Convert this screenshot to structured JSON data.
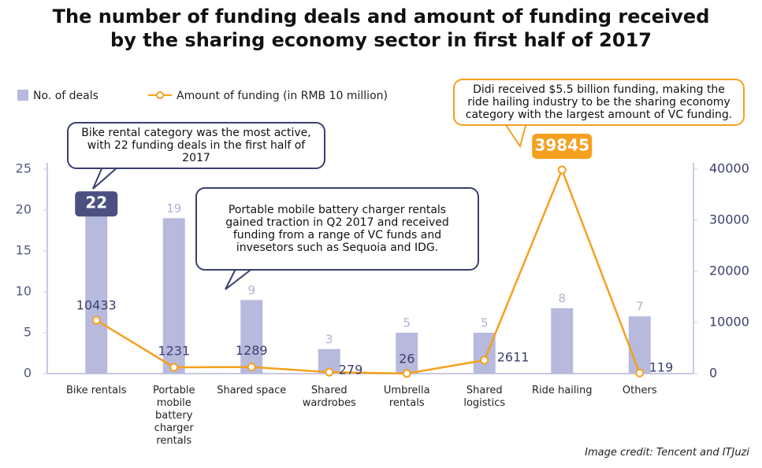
{
  "chart_data": {
    "type": "bar",
    "title": "The number of funding deals and amount of funding received by the sharing economy sector in first half of 2017",
    "categories": [
      "Bike rentals",
      "Portable mobile battery charger rentals",
      "Shared space",
      "Shared wardrobes",
      "Umbrella rentals",
      "Shared logistics",
      "Ride hailing",
      "Others"
    ],
    "series": [
      {
        "name": "No. of deals",
        "type": "bar",
        "color": "#b7badd",
        "values": [
          22,
          19,
          9,
          3,
          5,
          5,
          8,
          7
        ],
        "highlight": [
          0
        ]
      },
      {
        "name": "Amount of funding (in RMB 10 million)",
        "type": "line",
        "axis": "y2",
        "color": "#f5a01e",
        "values": [
          10433,
          1231,
          1289,
          279,
          26,
          2611,
          39845,
          119
        ],
        "highlight": [
          6
        ]
      }
    ],
    "ylim": [
      0,
      25
    ],
    "yticks": [
      0,
      5,
      10,
      15,
      20,
      25
    ],
    "y2lim": [
      0,
      40000
    ],
    "y2ticks": [
      0,
      10000,
      20000,
      30000,
      40000
    ],
    "annotations": [
      "Bike rental category was the most active, with 22 funding deals in the first half of 2017",
      "Portable mobile battery charger rentals gained traction in Q2 2017 and received funding from a range of VC funds and invesetors such as Sequoia and IDG.",
      "Didi received $5.5 billion funding, making the ride hailing industry to be the sharing economy category with the largest amount of VC funding."
    ],
    "credit": "Image credit: Tencent and ITJuzi"
  }
}
